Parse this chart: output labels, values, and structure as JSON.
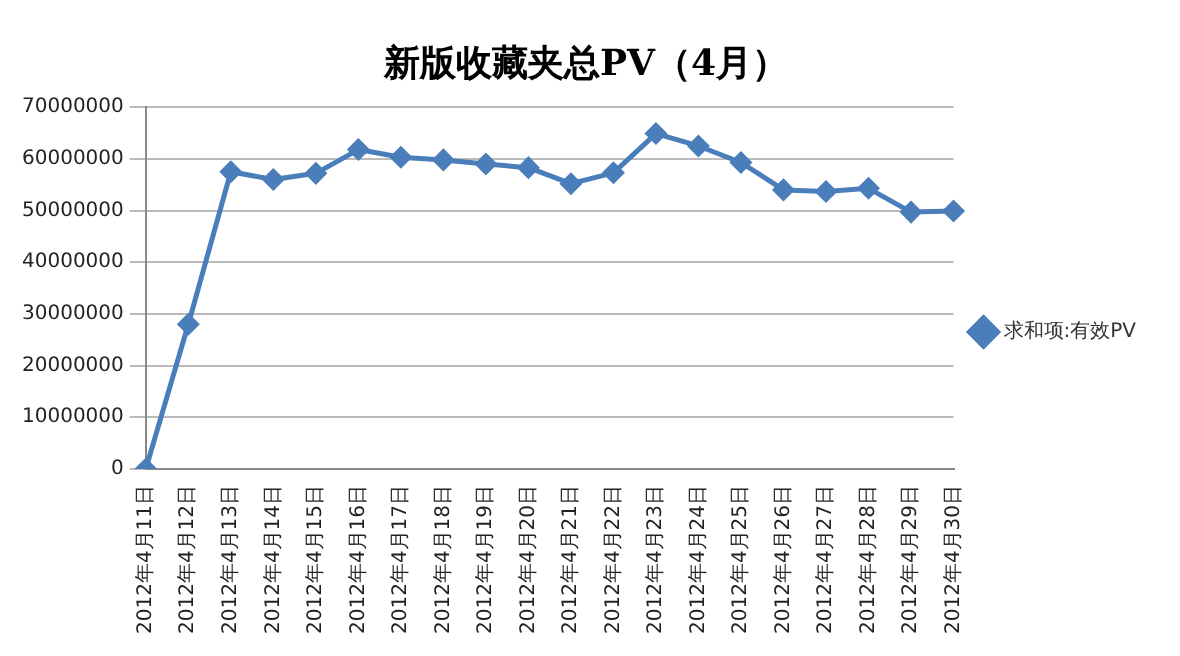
{
  "chart_data": {
    "type": "line",
    "title": "新版收藏夹总PV（4月）",
    "categories": [
      "2012年4月11日",
      "2012年4月12日",
      "2012年4月13日",
      "2012年4月14日",
      "2012年4月15日",
      "2012年4月16日",
      "2012年4月17日",
      "2012年4月18日",
      "2012年4月19日",
      "2012年4月20日",
      "2012年4月21日",
      "2012年4月22日",
      "2012年4月23日",
      "2012年4月24日",
      "2012年4月25日",
      "2012年4月26日",
      "2012年4月27日",
      "2012年4月28日",
      "2012年4月29日",
      "2012年4月30日"
    ],
    "series": [
      {
        "name": "求和项:有效PV",
        "color": "#4a7ebb",
        "values": [
          0,
          28000000,
          57500000,
          56000000,
          57200000,
          61800000,
          60300000,
          59800000,
          59000000,
          58300000,
          55200000,
          57300000,
          64900000,
          62500000,
          59300000,
          54000000,
          53700000,
          54300000,
          49700000,
          49900000
        ]
      }
    ],
    "ylim": [
      0,
      70000000
    ],
    "yticks": [
      0,
      10000000,
      20000000,
      30000000,
      40000000,
      50000000,
      60000000,
      70000000
    ],
    "grid": "y",
    "legend": "right",
    "marker": "diamond",
    "line_style": "solid"
  }
}
